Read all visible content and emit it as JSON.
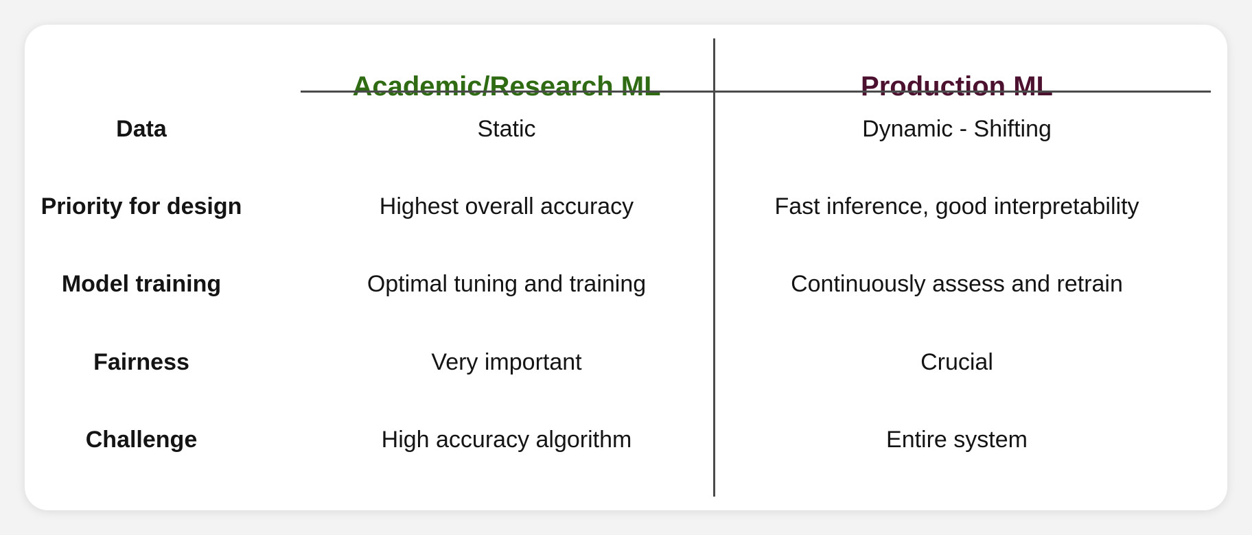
{
  "columns": {
    "academic": {
      "title": "Academic/Research ML",
      "color": "#2f6b12"
    },
    "production": {
      "title": "Production ML",
      "color": "#4d1130"
    }
  },
  "rows": [
    {
      "label": "Data",
      "academic": "Static",
      "production": "Dynamic - Shifting"
    },
    {
      "label": "Priority for design",
      "academic": "Highest overall accuracy",
      "production": "Fast inference, good interpretability"
    },
    {
      "label": "Model training",
      "academic": "Optimal tuning and training",
      "production": "Continuously assess and retrain"
    },
    {
      "label": "Fairness",
      "academic": "Very important",
      "production": "Crucial"
    },
    {
      "label": "Challenge",
      "academic": "High accuracy algorithm",
      "production": "Entire system"
    }
  ]
}
